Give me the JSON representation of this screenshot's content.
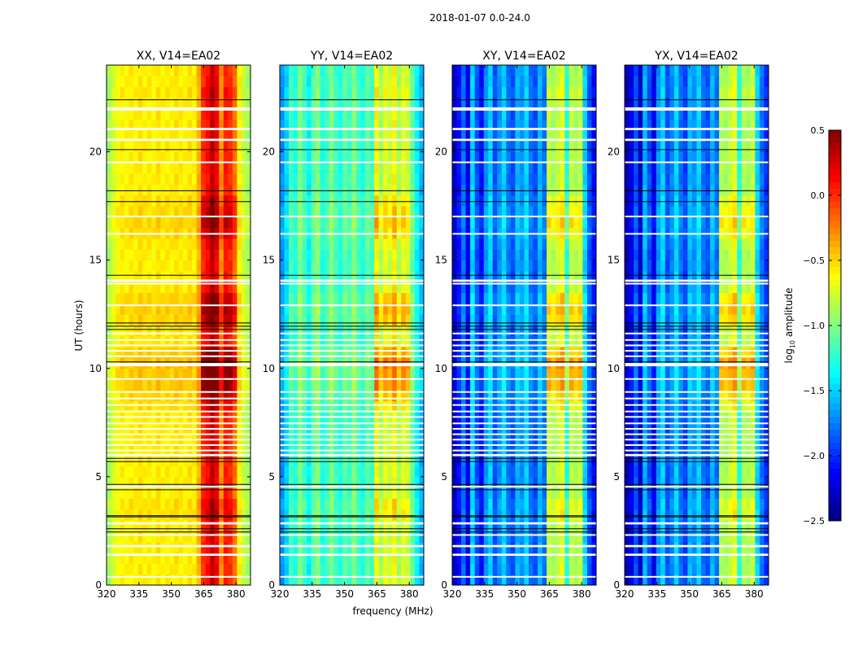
{
  "chart_data": {
    "type": "heatmap",
    "title": "2018-01-07 0.0-24.0",
    "xlabel": "frequency (MHz)",
    "ylabel": "UT (hours)",
    "xlim": [
      320,
      386.7
    ],
    "ylim": [
      0,
      24
    ],
    "xticks": [
      "320",
      "335",
      "350",
      "365",
      "380"
    ],
    "xtick_values": [
      320,
      335,
      350,
      365,
      380
    ],
    "yticks": [
      "0",
      "5",
      "10",
      "15",
      "20"
    ],
    "ytick_values": [
      0,
      5,
      10,
      15,
      20
    ],
    "colormap": "jet",
    "colorbar": {
      "label": "log10 amplitude",
      "label_main": "log",
      "label_sub": "10",
      "label_rest": " amplitude",
      "range": [
        -2.5,
        0.5
      ],
      "ticks": [
        "0.5",
        "0.0",
        "−0.5",
        "−1.0",
        "−1.5",
        "−2.0",
        "−2.5"
      ],
      "tick_values": [
        0.5,
        0.0,
        -0.5,
        -1.0,
        -1.5,
        -2.0,
        -2.5
      ]
    },
    "freq_bins_mhz": 2.084,
    "time_bins_hours": 0.5,
    "row_offsets": [
      0,
      0,
      0,
      0,
      0,
      0,
      0.1,
      0.1,
      0,
      0,
      0,
      0,
      0,
      0,
      0,
      0,
      0.1,
      0.2,
      0.3,
      0.3,
      0.35,
      0.25,
      0.05,
      0.05,
      0.2,
      0.25,
      0.2,
      0.05,
      0,
      0,
      0,
      0.05,
      0.15,
      0.2,
      0.15,
      0.1,
      0,
      0,
      0,
      0,
      0,
      0,
      0,
      0,
      0,
      0.05,
      0,
      0
    ],
    "panels": [
      {
        "title": "XX, V14=EA02",
        "column_values": [
          -0.9,
          -0.75,
          -0.65,
          -0.6,
          -0.62,
          -0.58,
          -0.6,
          -0.55,
          -0.6,
          -0.58,
          -0.62,
          -0.55,
          -0.6,
          -0.58,
          -0.6,
          -0.55,
          -0.58,
          -0.6,
          -0.55,
          -0.6,
          -0.4,
          0.0,
          0.1,
          0.3,
          0.15,
          -0.3,
          0.05,
          0.0,
          -0.2,
          -0.6,
          -0.8,
          -0.9
        ]
      },
      {
        "title": "YY, V14=EA02",
        "column_values": [
          -1.7,
          -1.5,
          -1.2,
          -1.3,
          -1.0,
          -1.2,
          -1.4,
          -1.1,
          -1.0,
          -1.3,
          -1.2,
          -1.0,
          -1.2,
          -1.3,
          -1.1,
          -1.2,
          -1.0,
          -1.2,
          -1.3,
          -1.1,
          -1.2,
          -0.6,
          -0.9,
          -0.7,
          -0.8,
          -0.6,
          -0.9,
          -0.7,
          -0.8,
          -1.1,
          -1.4,
          -1.6
        ]
      },
      {
        "title": "XY, V14=EA02",
        "column_values": [
          -2.3,
          -2.1,
          -1.8,
          -2.2,
          -1.5,
          -1.9,
          -2.1,
          -1.7,
          -1.5,
          -1.9,
          -1.7,
          -1.5,
          -1.8,
          -1.9,
          -1.6,
          -1.7,
          -1.5,
          -1.8,
          -1.9,
          -1.6,
          -1.8,
          -0.8,
          -0.9,
          -0.8,
          -0.7,
          -1.3,
          -0.8,
          -0.9,
          -0.8,
          -1.5,
          -1.9,
          -2.1
        ]
      },
      {
        "title": "YX, V14=EA02",
        "column_values": [
          -2.35,
          -2.2,
          -1.9,
          -2.3,
          -1.6,
          -1.9,
          -2.2,
          -1.7,
          -1.5,
          -1.9,
          -1.75,
          -1.5,
          -1.8,
          -1.95,
          -1.6,
          -1.7,
          -1.5,
          -1.8,
          -1.9,
          -1.6,
          -1.8,
          -0.85,
          -0.9,
          -0.8,
          -0.7,
          -1.3,
          -0.85,
          -0.9,
          -0.8,
          -1.5,
          -1.8,
          -2.0
        ]
      }
    ],
    "flagged_gaps_hours": [
      [
        0.35,
        0.42
      ],
      [
        1.35,
        1.45
      ],
      [
        1.75,
        1.85
      ],
      [
        2.3,
        2.35
      ],
      [
        2.8,
        2.9
      ],
      [
        4.5,
        4.58
      ],
      [
        5.95,
        6.05
      ],
      [
        6.2,
        6.25
      ],
      [
        6.45,
        6.5
      ],
      [
        6.7,
        6.75
      ],
      [
        6.95,
        7.0
      ],
      [
        7.2,
        7.25
      ],
      [
        7.45,
        7.5
      ],
      [
        7.75,
        7.8
      ],
      [
        8.0,
        8.05
      ],
      [
        8.3,
        8.35
      ],
      [
        8.6,
        8.65
      ],
      [
        8.9,
        8.95
      ],
      [
        9.5,
        9.55
      ],
      [
        10.1,
        10.25
      ],
      [
        10.55,
        10.6
      ],
      [
        10.8,
        10.85
      ],
      [
        11.05,
        11.1
      ],
      [
        11.3,
        11.35
      ],
      [
        11.6,
        11.65
      ],
      [
        12.9,
        12.95
      ],
      [
        13.9,
        13.95
      ],
      [
        14.0,
        14.1
      ],
      [
        16.2,
        16.25
      ],
      [
        17.0,
        17.05
      ],
      [
        19.5,
        19.55
      ],
      [
        20.5,
        20.6
      ],
      [
        21.0,
        21.1
      ],
      [
        21.9,
        22.05
      ]
    ],
    "black_lines_hours": [
      2.45,
      2.6,
      3.15,
      3.2,
      4.4,
      4.65,
      5.7,
      5.85,
      10.3,
      11.8,
      11.95,
      12.1,
      14.3,
      17.7,
      18.2,
      20.1,
      22.4
    ]
  }
}
